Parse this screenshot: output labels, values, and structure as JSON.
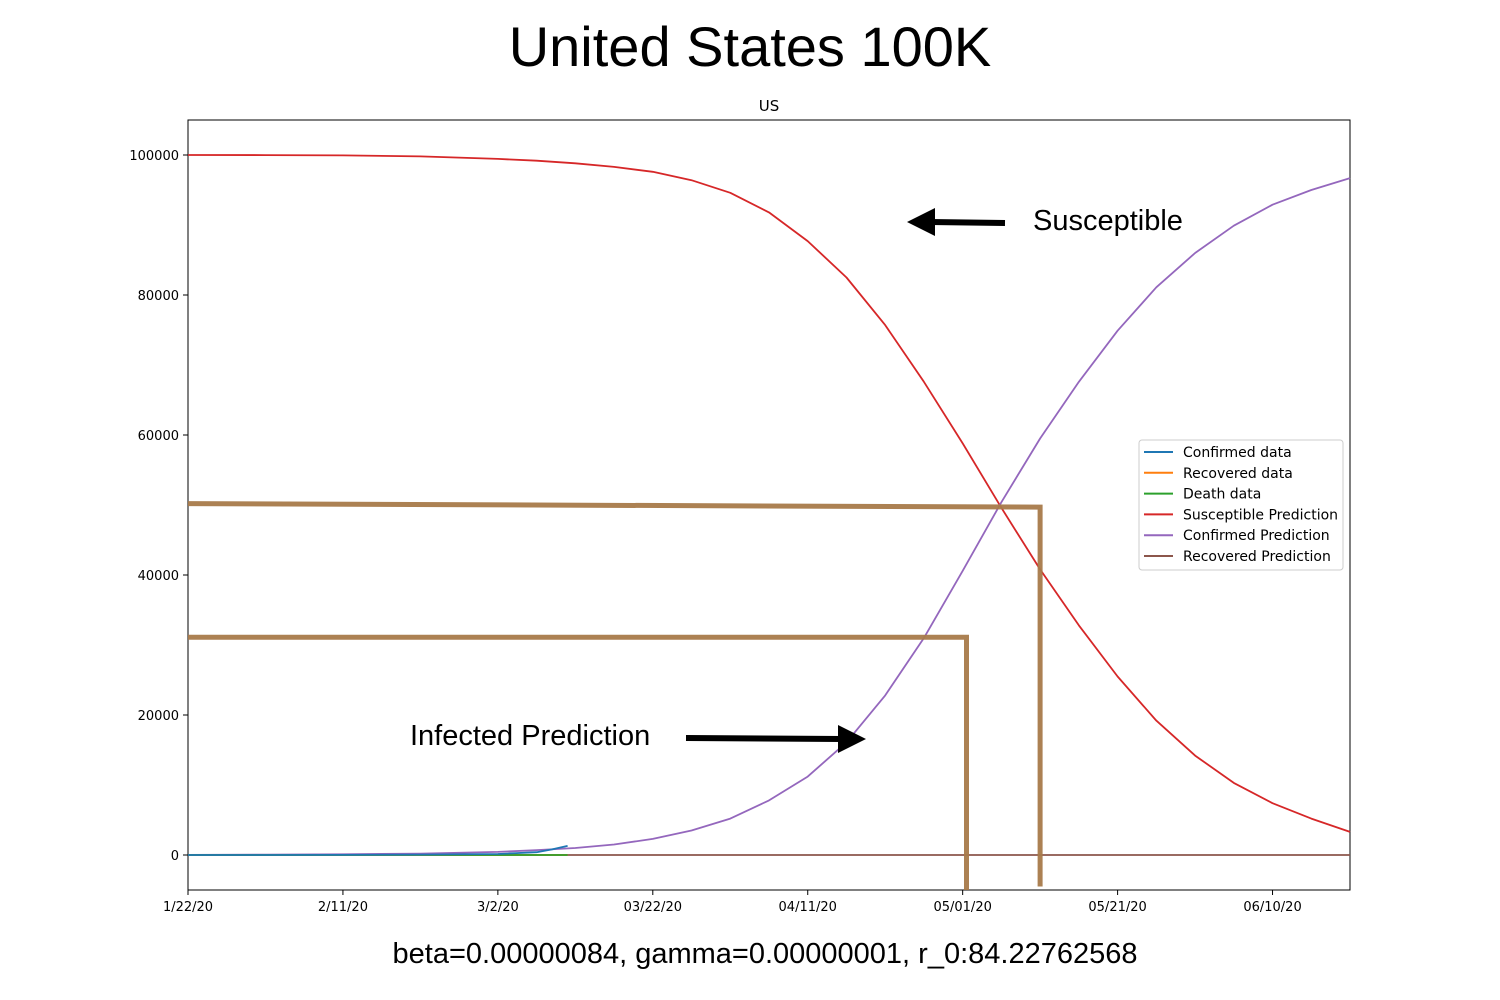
{
  "title": "United States 100K",
  "caption": "beta=0.00000084, gamma=0.00000001, r_0:84.22762568",
  "annotations": {
    "susceptible": "Susceptible",
    "infected": "Infected Prediction"
  },
  "colors": {
    "confirmed_data": "#1f77b4",
    "recovered_data": "#ff7f0e",
    "death_data": "#2ca02c",
    "susceptible_prediction": "#d62728",
    "confirmed_prediction": "#9467bd",
    "recovered_prediction": "#8c564b",
    "guide_lines": "#a87a4a"
  },
  "chart_data": {
    "type": "line",
    "title": "US",
    "xlabel": "",
    "ylabel": "",
    "x_start": "1/22/20",
    "xlim_days": [
      0,
      150
    ],
    "ylim": [
      -5000,
      105000
    ],
    "grid": false,
    "legend_position": "center-right",
    "x_ticks": [
      {
        "day": 0,
        "label": "1/22/20"
      },
      {
        "day": 20,
        "label": "2/11/20"
      },
      {
        "day": 40,
        "label": "3/2/20"
      },
      {
        "day": 60,
        "label": "03/22/20"
      },
      {
        "day": 80,
        "label": "04/11/20"
      },
      {
        "day": 100,
        "label": "05/01/20"
      },
      {
        "day": 120,
        "label": "05/21/20"
      },
      {
        "day": 140,
        "label": "06/10/20"
      }
    ],
    "y_ticks": [
      0,
      20000,
      40000,
      60000,
      80000,
      100000
    ],
    "series": [
      {
        "name": "Confirmed data",
        "color": "#1f77b4",
        "x": [
          0,
          10,
          20,
          30,
          40,
          45,
          47,
          49
        ],
        "y": [
          1,
          5,
          15,
          60,
          150,
          400,
          800,
          1300
        ]
      },
      {
        "name": "Recovered data",
        "color": "#ff7f0e",
        "x": [
          0,
          20,
          40,
          49
        ],
        "y": [
          0,
          0,
          0,
          0
        ]
      },
      {
        "name": "Death data",
        "color": "#2ca02c",
        "x": [
          0,
          20,
          40,
          49
        ],
        "y": [
          0,
          0,
          0,
          0
        ]
      },
      {
        "name": "Susceptible Prediction",
        "color": "#d62728",
        "x": [
          0,
          10,
          20,
          30,
          40,
          45,
          50,
          55,
          60,
          65,
          70,
          75,
          80,
          85,
          90,
          95,
          100,
          105,
          110,
          115,
          120,
          125,
          130,
          135,
          140,
          145,
          150
        ],
        "y": [
          100000,
          99990,
          99940,
          99800,
          99450,
          99180,
          98820,
          98300,
          97600,
          96400,
          94600,
          91800,
          87700,
          82500,
          75700,
          67600,
          58800,
          49600,
          40800,
          32800,
          25500,
          19200,
          14200,
          10300,
          7400,
          5200,
          3300
        ]
      },
      {
        "name": "Confirmed Prediction",
        "color": "#9467bd",
        "x": [
          0,
          10,
          20,
          30,
          40,
          45,
          50,
          55,
          60,
          65,
          70,
          75,
          80,
          85,
          90,
          95,
          100,
          105,
          110,
          115,
          120,
          125,
          130,
          135,
          140,
          145,
          150
        ],
        "y": [
          10,
          50,
          100,
          200,
          450,
          700,
          1000,
          1500,
          2300,
          3500,
          5200,
          7800,
          11200,
          16100,
          22800,
          31000,
          40600,
          50400,
          59500,
          67600,
          74900,
          81100,
          86000,
          89900,
          92900,
          95000,
          96700
        ]
      },
      {
        "name": "Recovered Prediction",
        "color": "#8c564b",
        "x": [
          0,
          150
        ],
        "y": [
          0,
          0
        ]
      }
    ],
    "guide_lines": [
      {
        "points": [
          [
            0,
            50200
          ],
          [
            110,
            49700
          ],
          [
            110,
            -4500
          ]
        ]
      },
      {
        "points": [
          [
            0,
            31100
          ],
          [
            100.5,
            31100
          ],
          [
            100.5,
            -5000
          ]
        ]
      }
    ]
  }
}
